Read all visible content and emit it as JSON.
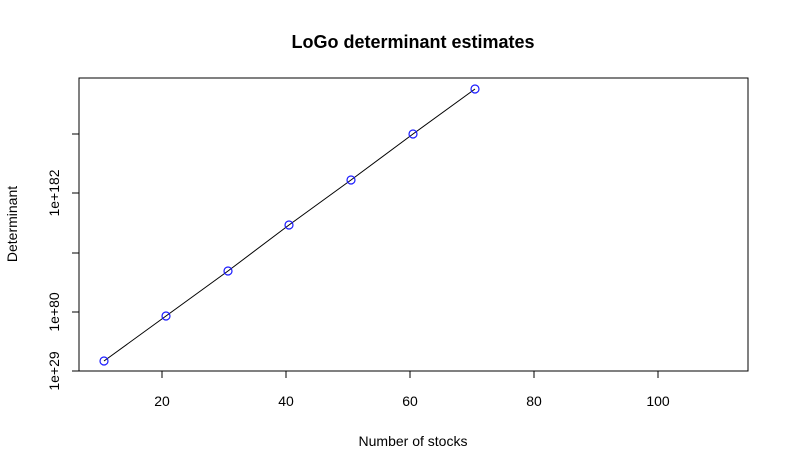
{
  "chart_data": {
    "type": "line",
    "title": "LoGo determinant estimates",
    "xlabel": "Number of stocks",
    "ylabel": "Determinant",
    "log_scale_y": true,
    "xlim": [
      10,
      110
    ],
    "ylim_log10": [
      29,
      258
    ],
    "x_ticks": [
      20,
      40,
      60,
      80,
      100
    ],
    "x_tick_labels": [
      "20",
      "40",
      "60",
      "80",
      "100"
    ],
    "y_ticks_log10": [
      29,
      80,
      131,
      182,
      233
    ],
    "y_tick_labels": [
      "1e+29",
      "1e+80",
      "",
      "1e+182",
      ""
    ],
    "series": [
      {
        "x": [
          10,
          20,
          30,
          40,
          50,
          60,
          70
        ],
        "y_log10": [
          33,
          56,
          114,
          154,
          192,
          232,
          271
        ],
        "marker_color": "#1a1aff",
        "line_color": "#000000"
      }
    ],
    "grid": false
  }
}
